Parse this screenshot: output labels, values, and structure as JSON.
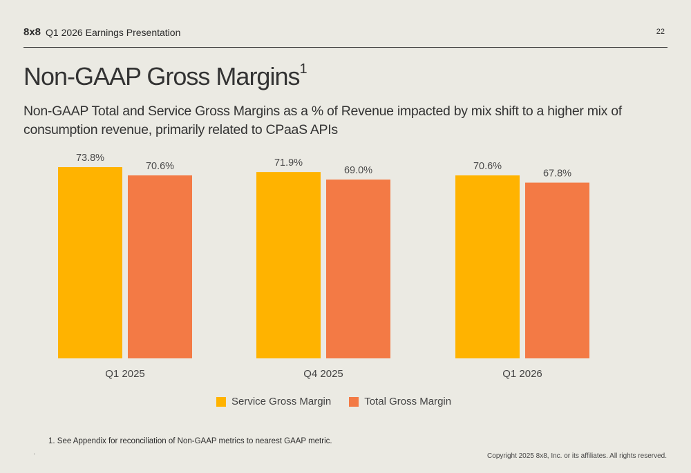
{
  "header": {
    "logo": "8x8",
    "deck_title": "Q1 2026 Earnings Presentation",
    "page_number": "22"
  },
  "slide": {
    "title": "Non-GAAP Gross Margins",
    "title_sup": "1",
    "subtitle": "Non-GAAP Total and Service Gross Margins as a % of Revenue impacted by mix shift to a higher mix of consumption revenue, primarily related to CPaaS APIs"
  },
  "chart_data": {
    "type": "bar",
    "categories": [
      "Q1 2025",
      "Q4 2025",
      "Q1 2026"
    ],
    "series": [
      {
        "name": "Service Gross Margin",
        "values": [
          73.8,
          71.9,
          70.6
        ],
        "labels": [
          "73.8%",
          "71.9%",
          "70.6%"
        ],
        "color": "#ffb300"
      },
      {
        "name": "Total Gross Margin",
        "values": [
          70.6,
          69.0,
          67.8
        ],
        "labels": [
          "70.6%",
          "69.0%",
          "67.8%"
        ],
        "color": "#f37a45"
      }
    ],
    "ylim": [
      0,
      73.8
    ],
    "grid": false,
    "legend_position": "bottom"
  },
  "footer": {
    "footnote": "1.  See Appendix for reconciliation of Non-GAAP metrics to nearest GAAP metric.",
    "dot": "·",
    "copyright": "Copyright 2025 8x8, Inc. or its affiliates. All rights reserved."
  }
}
